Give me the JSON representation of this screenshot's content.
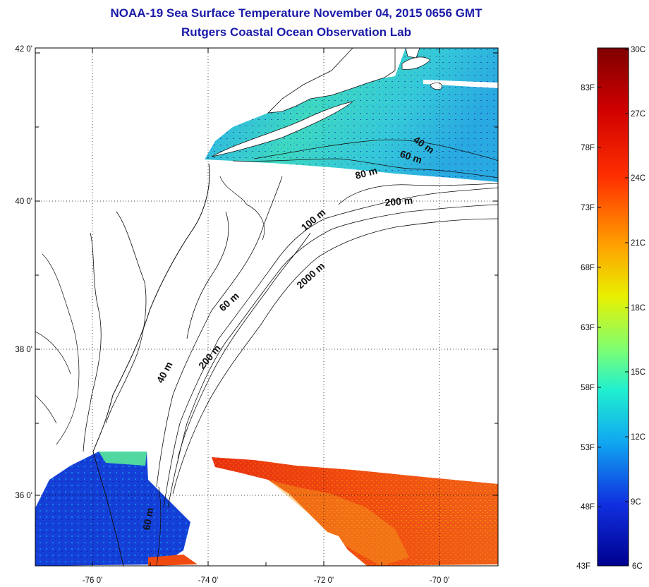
{
  "header": {
    "title": "NOAA-19 Sea Surface Temperature November 04, 2015 0656 GMT",
    "subtitle": "Rutgers Coastal Ocean Observation Lab"
  },
  "map": {
    "lat_labels": [
      "42 0'",
      "40 0'",
      "38 0'",
      "36 0'"
    ],
    "lon_labels": [
      "-76 0'",
      "-74 0'",
      "-72 0'",
      "-70 0'"
    ],
    "contours": [
      {
        "label": "40 m"
      },
      {
        "label": "60 m"
      },
      {
        "label": "80 m"
      },
      {
        "label": "200 m"
      },
      {
        "label": "100 m"
      },
      {
        "label": "2000 m"
      },
      {
        "label": "60 m"
      },
      {
        "label": "40 m"
      },
      {
        "label": "200 m"
      },
      {
        "label": "60 m"
      }
    ]
  },
  "colorbar": {
    "celsius_labels": [
      "30C",
      "27C",
      "24C",
      "21C",
      "18C",
      "15C",
      "12C",
      "9C",
      "6C"
    ],
    "fahrenheit_labels": [
      "83F",
      "78F",
      "73F",
      "68F",
      "63F",
      "58F",
      "53F",
      "48F",
      "43F"
    ],
    "colors": [
      "#7f0000",
      "#ff0000",
      "#ff8000",
      "#ffff00",
      "#80ff80",
      "#00ffff",
      "#0080ff",
      "#0000ff",
      "#00008f"
    ]
  }
}
